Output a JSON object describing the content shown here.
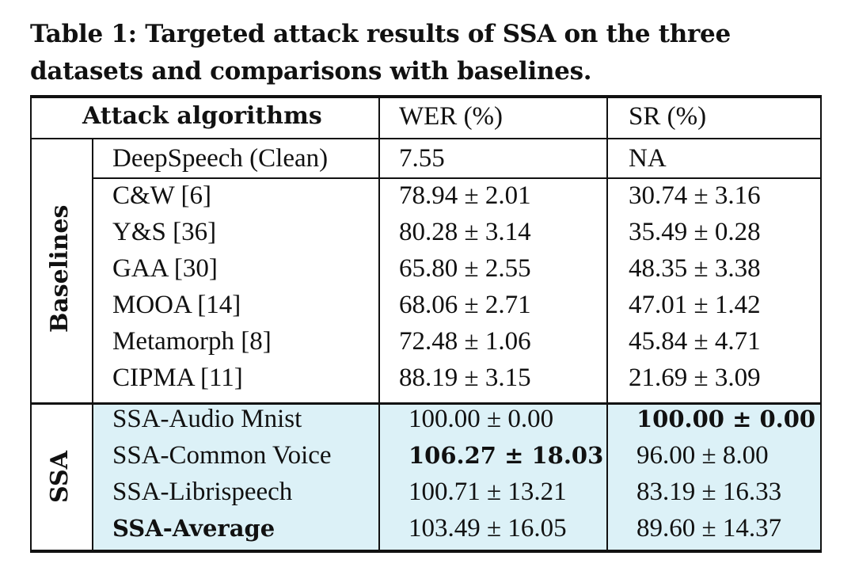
{
  "caption": "Table 1: Targeted attack results of SSA on the three datasets and comparisons with baselines.",
  "header": {
    "algorithms": "Attack algorithms",
    "wer": "WER (%)",
    "sr": "SR (%)"
  },
  "groups": {
    "baselines": "Baselines",
    "ssa": "SSA"
  },
  "baselines": [
    {
      "name": "DeepSpeech (Clean)",
      "wer": "7.55",
      "sr": "NA"
    },
    {
      "name": "C&W [6]",
      "wer": "78.94 ± 2.01",
      "sr": "30.74 ± 3.16"
    },
    {
      "name": "Y&S [36]",
      "wer": "80.28 ± 3.14",
      "sr": "35.49 ± 0.28"
    },
    {
      "name": "GAA [30]",
      "wer": "65.80 ± 2.55",
      "sr": "48.35 ± 3.38"
    },
    {
      "name": "MOOA [14]",
      "wer": "68.06 ± 2.71",
      "sr": "47.01 ± 1.42"
    },
    {
      "name": "Metamorph [8]",
      "wer": "72.48 ± 1.06",
      "sr": "45.84 ± 4.71"
    },
    {
      "name": "CIPMA [11]",
      "wer": "88.19 ± 3.15",
      "sr": "21.69 ± 3.09"
    }
  ],
  "ssa": [
    {
      "name": "SSA-Audio Mnist",
      "wer": "100.00 ± 0.00",
      "sr": "100.00 ± 0.00"
    },
    {
      "name": "SSA-Common Voice",
      "wer": "106.27 ± 18.03",
      "sr": "96.00 ± 8.00"
    },
    {
      "name": "SSA-Librispeech",
      "wer": "100.71 ± 13.21",
      "sr": "83.19 ± 16.33"
    },
    {
      "name": "SSA-Average",
      "wer": "103.49 ± 16.05",
      "sr": "89.60 ± 14.37"
    }
  ],
  "colors": {
    "ssa_highlight": "#dcf1f7",
    "rule": "#111111"
  }
}
